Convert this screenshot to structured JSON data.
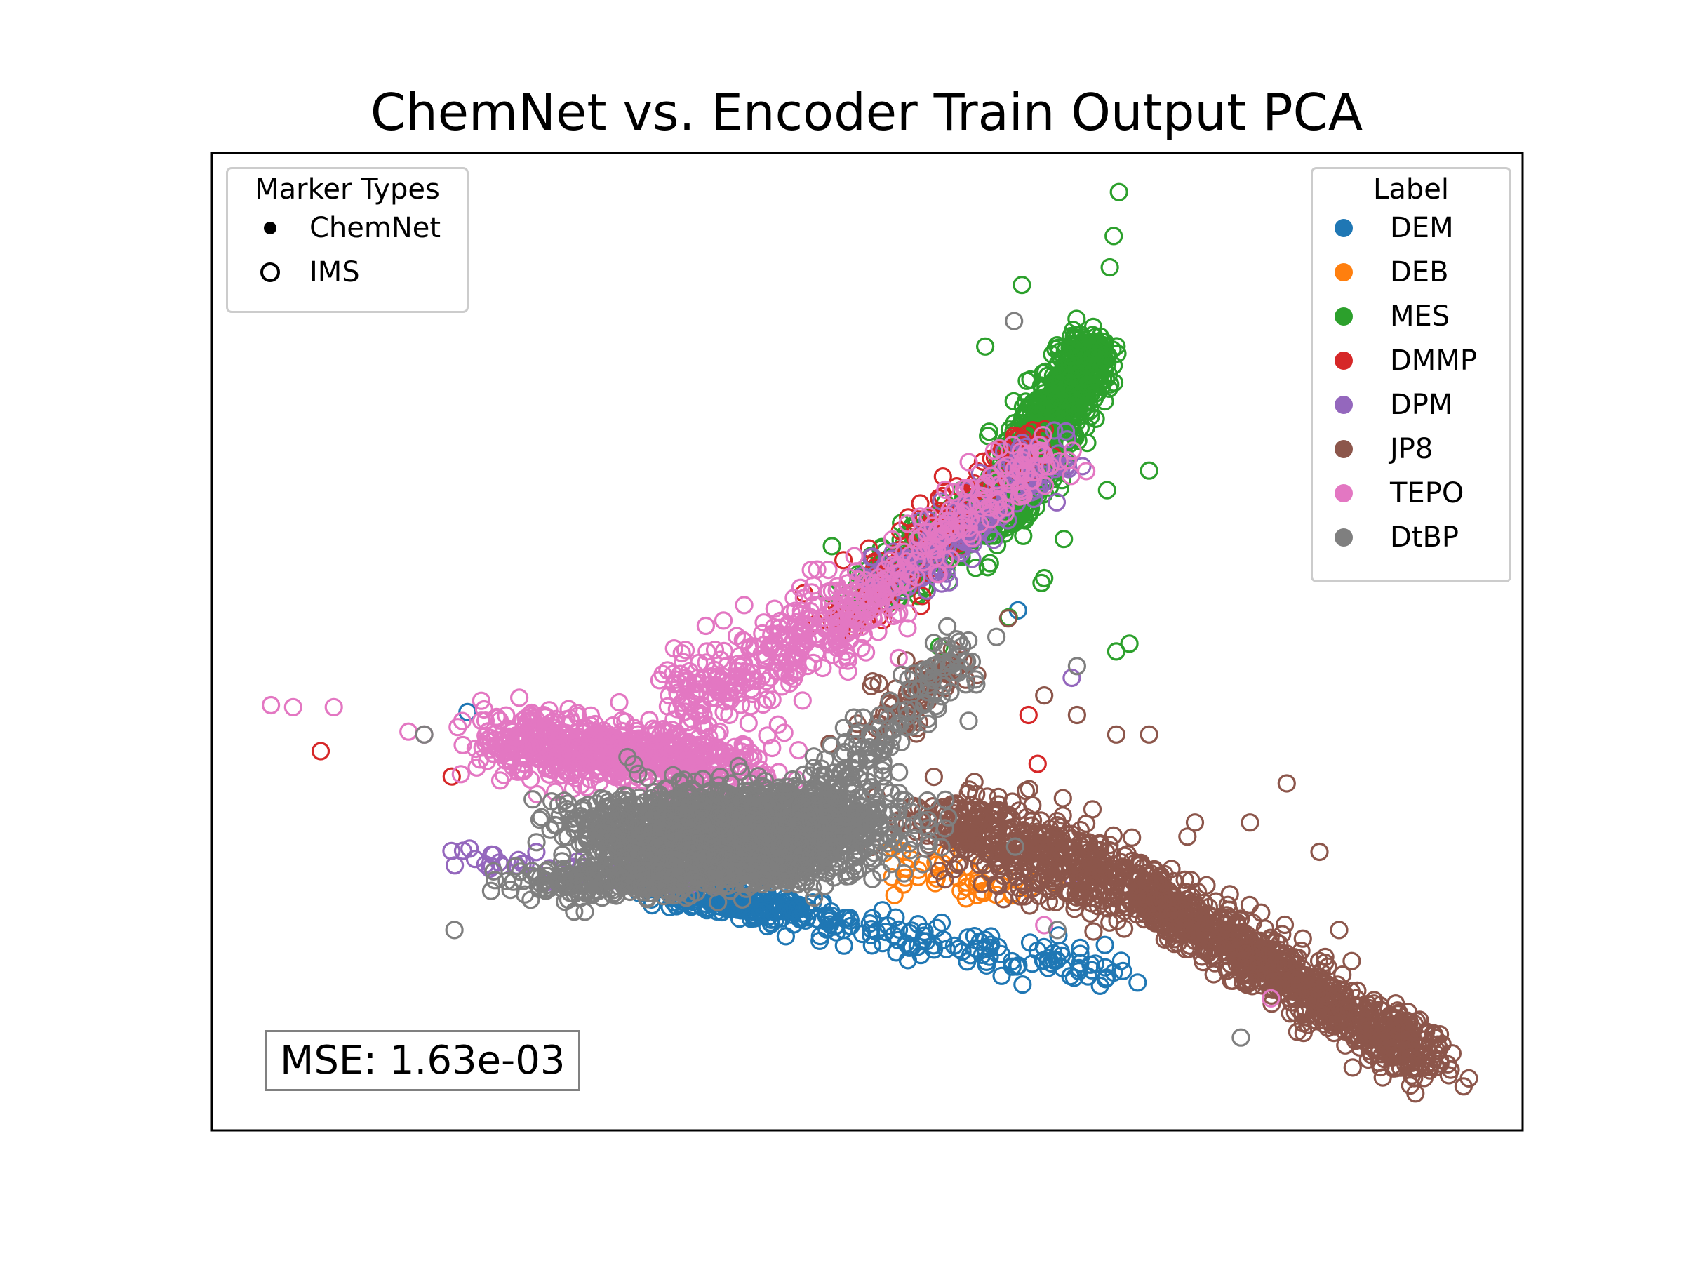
{
  "chart_data": {
    "type": "scatter",
    "title": "ChemNet vs. Encoder Train Output PCA",
    "xlabel": "",
    "ylabel": "",
    "grid": false,
    "axes_ticks": false,
    "marker_legend": {
      "title": "Marker Types",
      "placement": "upper-left",
      "items": [
        {
          "label": "ChemNet",
          "marker": "filled"
        },
        {
          "label": "IMS",
          "marker": "open"
        }
      ]
    },
    "label_legend": {
      "title": "Label",
      "placement": "upper-right",
      "items": [
        {
          "label": "DEM",
          "color": "#1f77b4"
        },
        {
          "label": "DEB",
          "color": "#ff7f0e"
        },
        {
          "label": "MES",
          "color": "#2ca02c"
        },
        {
          "label": "DMMP",
          "color": "#d62728"
        },
        {
          "label": "DPM",
          "color": "#9467bd"
        },
        {
          "label": "JP8",
          "color": "#8c564b"
        },
        {
          "label": "TEPO",
          "color": "#e377c2"
        },
        {
          "label": "DtBP",
          "color": "#7f7f7f"
        }
      ]
    },
    "annotation": "MSE: 1.63e-03",
    "xlim": [
      0,
      100
    ],
    "ylim": [
      0,
      100
    ],
    "series": [
      {
        "name": "DEM",
        "color": "#1f77b4",
        "marker": "open",
        "clusters": [
          {
            "from": [
              36,
              24.5
            ],
            "to": [
              45,
              22
            ],
            "spread": [
              4,
              1.2
            ],
            "count": 220
          },
          {
            "from": [
              45,
              22
            ],
            "to": [
              68,
              16
            ],
            "spread": [
              5,
              1.5
            ],
            "count": 120
          }
        ],
        "points": [
          [
            19.5,
            42.8
          ],
          [
            61.5,
            53.2
          ]
        ]
      },
      {
        "name": "DEB",
        "color": "#ff7f0e",
        "marker": "open",
        "clusters": [
          {
            "from": [
              52,
              28
            ],
            "to": [
              62,
              24
            ],
            "spread": [
              3,
              2
            ],
            "count": 40
          }
        ],
        "points": []
      },
      {
        "name": "MES",
        "color": "#2ca02c",
        "marker": "open",
        "clusters": [
          {
            "from": [
              60,
              63
            ],
            "to": [
              67,
              80
            ],
            "spread": [
              2.2,
              3
            ],
            "count": 900
          },
          {
            "from": [
              50,
              55
            ],
            "to": [
              60,
              64
            ],
            "spread": [
              3,
              2.5
            ],
            "count": 260
          }
        ],
        "points": [
          [
            69.2,
            96
          ],
          [
            68.8,
            91.5
          ],
          [
            68.5,
            88.3
          ],
          [
            61.8,
            86.5
          ],
          [
            59,
            80.2
          ],
          [
            71.5,
            67.5
          ],
          [
            68.3,
            65.5
          ],
          [
            65,
            60.5
          ],
          [
            63.3,
            56
          ],
          [
            63.5,
            56.5
          ],
          [
            60.8,
            52.5
          ],
          [
            55.5,
            49.5
          ],
          [
            70,
            49.8
          ],
          [
            69,
            49
          ]
        ]
      },
      {
        "name": "DMMP",
        "color": "#d62728",
        "marker": "open",
        "clusters": [
          {
            "from": [
              48,
              52
            ],
            "to": [
              63,
              71
            ],
            "spread": [
              3,
              2.5
            ],
            "count": 140
          }
        ],
        "points": [
          [
            8.3,
            38.8
          ],
          [
            18.3,
            36.2
          ],
          [
            62.3,
            42.5
          ],
          [
            63,
            37.5
          ]
        ]
      },
      {
        "name": "DPM",
        "color": "#9467bd",
        "marker": "open",
        "clusters": [
          {
            "from": [
              52,
              55
            ],
            "to": [
              64,
              70
            ],
            "spread": [
              3,
              2.2
            ],
            "count": 160
          },
          {
            "from": [
              18,
              28
            ],
            "to": [
              40,
              25
            ],
            "spread": [
              5,
              1.2
            ],
            "count": 50
          }
        ],
        "points": [
          [
            65.6,
            46.3
          ],
          [
            65.6,
            26
          ],
          [
            57,
            48.5
          ]
        ]
      },
      {
        "name": "JP8",
        "color": "#8c564b",
        "marker": "open",
        "clusters": [
          {
            "from": [
              56,
              32
            ],
            "to": [
              70,
              25
            ],
            "spread": [
              5,
              4
            ],
            "count": 450
          },
          {
            "from": [
              70,
              25
            ],
            "to": [
              93,
              7
            ],
            "spread": [
              3,
              2.5
            ],
            "count": 800
          },
          {
            "from": [
              50,
              40
            ],
            "to": [
              58,
              50
            ],
            "spread": [
              3,
              2.5
            ],
            "count": 70
          }
        ],
        "points": [
          [
            95.5,
            4.5
          ],
          [
            82,
            35.5
          ],
          [
            79.2,
            31.5
          ],
          [
            84.5,
            28.5
          ],
          [
            75,
            31.5
          ],
          [
            86.5,
            12.5
          ],
          [
            86,
            20.5
          ],
          [
            63.5,
            44.5
          ],
          [
            66,
            42.5
          ],
          [
            69,
            40.5
          ],
          [
            71.5,
            40.5
          ]
        ]
      },
      {
        "name": "TEPO",
        "color": "#e377c2",
        "marker": "open",
        "clusters": [
          {
            "from": [
              22,
              40
            ],
            "to": [
              40,
              37
            ],
            "spread": [
              4,
              3.5
            ],
            "count": 620
          },
          {
            "from": [
              36,
              44
            ],
            "to": [
              52,
              55
            ],
            "spread": [
              4,
              4
            ],
            "count": 320
          },
          {
            "from": [
              50,
              55
            ],
            "to": [
              64,
              70
            ],
            "spread": [
              3,
              2.5
            ],
            "count": 150
          }
        ],
        "points": [
          [
            4.5,
            43.5
          ],
          [
            6.2,
            43.3
          ],
          [
            9.3,
            43.3
          ],
          [
            15,
            40.8
          ],
          [
            16.2,
            40.5
          ],
          [
            22,
            35.8
          ],
          [
            80.8,
            13.5
          ],
          [
            63.5,
            21
          ]
        ]
      },
      {
        "name": "DtBP",
        "color": "#7f7f7f",
        "marker": "open",
        "clusters": [
          {
            "from": [
              32,
              30.5
            ],
            "to": [
              48,
              31
            ],
            "spread": [
              7,
              4.2
            ],
            "count": 1700
          },
          {
            "from": [
              26,
              25
            ],
            "to": [
              45,
              27
            ],
            "spread": [
              5,
              1.8
            ],
            "count": 400
          },
          {
            "from": [
              46,
              33
            ],
            "to": [
              58,
              50
            ],
            "spread": [
              2.8,
              3
            ],
            "count": 150
          }
        ],
        "points": [
          [
            61.2,
            82.8
          ],
          [
            18.5,
            20.5
          ],
          [
            25,
            31.8
          ],
          [
            21.5,
            26.5
          ],
          [
            22.5,
            25.5
          ],
          [
            21.3,
            24.5
          ],
          [
            16.2,
            40.5
          ],
          [
            78.5,
            9.5
          ],
          [
            66,
            47.5
          ],
          [
            64.5,
            20.5
          ]
        ]
      }
    ]
  }
}
